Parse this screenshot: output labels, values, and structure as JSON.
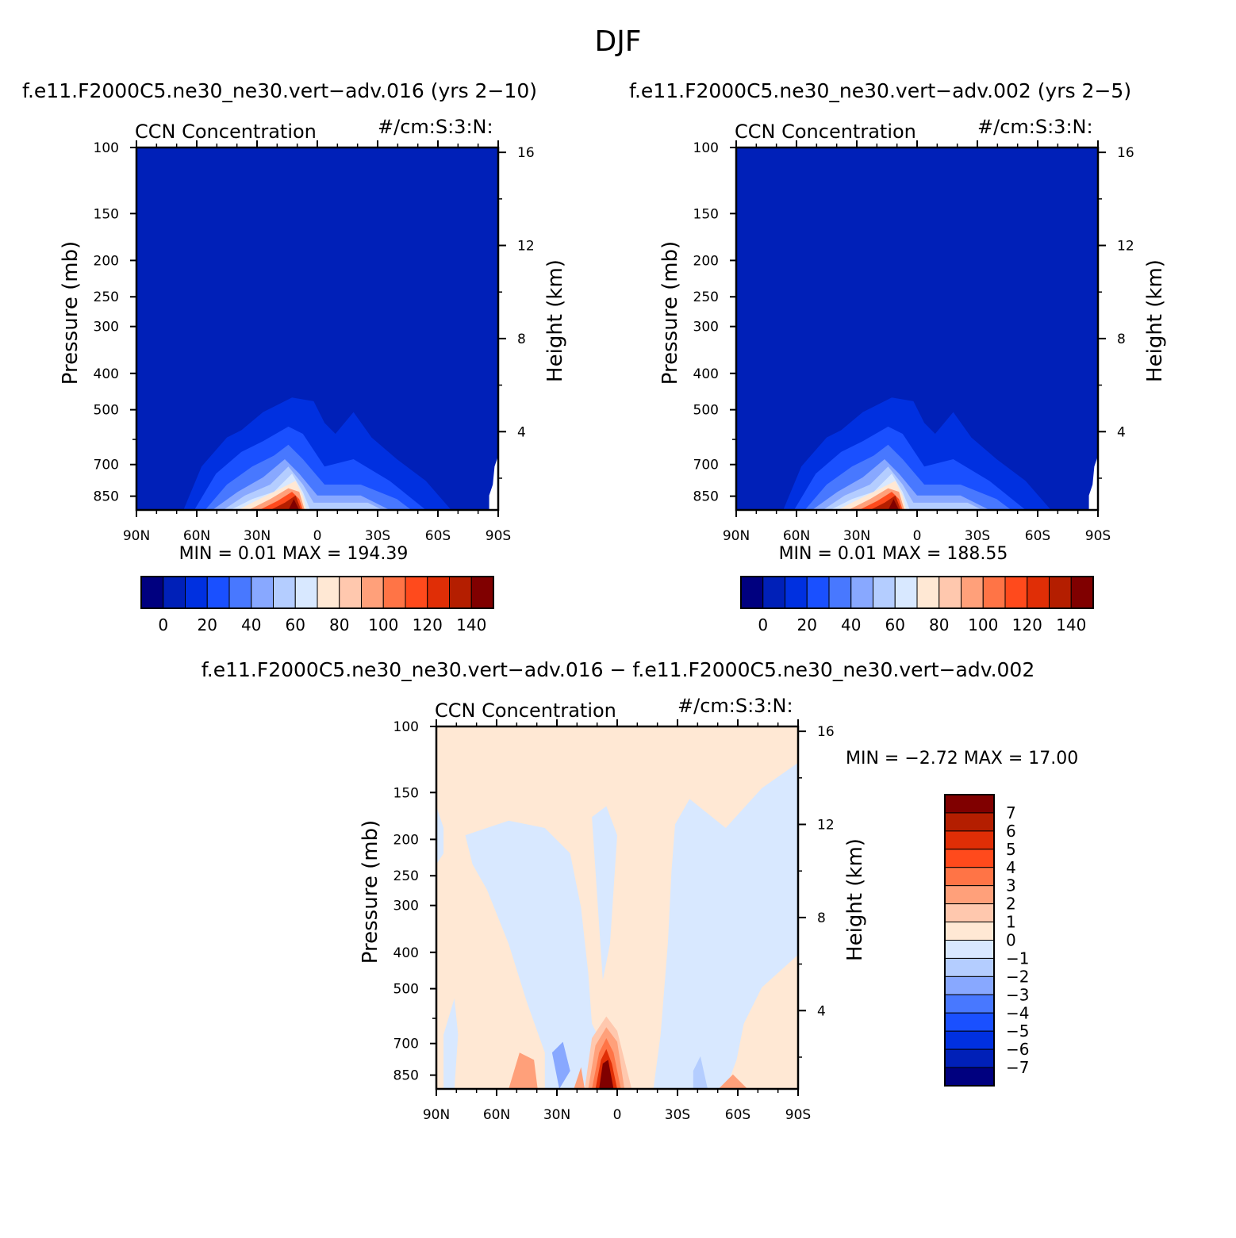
{
  "figure": {
    "title": "DJF",
    "diff_title": "f.e11.F2000C5.ne30_ne30.vert−adv.016 − f.e11.F2000C5.ne30_ne30.vert−adv.002"
  },
  "colors": {
    "abs_levels": [
      "#00007f",
      "#0020b8",
      "#0030e0",
      "#1a50ff",
      "#4878ff",
      "#88a8ff",
      "#b4cdff",
      "#d8e8ff",
      "#ffe8d4",
      "#ffc8ae",
      "#ffa07a",
      "#ff7446",
      "#ff4a1c",
      "#e02e06",
      "#b41e00",
      "#800000"
    ],
    "diff_levels": [
      "#00007f",
      "#0020b8",
      "#0030e0",
      "#1a50ff",
      "#4878ff",
      "#88a8ff",
      "#b4cdff",
      "#d8e8ff",
      "#ffe8d4",
      "#ffc8ae",
      "#ffa07a",
      "#ff7446",
      "#ff4a1c",
      "#e02e06",
      "#b41e00",
      "#800000"
    ]
  },
  "chart_data": [
    {
      "type": "heatmap",
      "title": "f.e11.F2000C5.ne30_ne30.vert−adv.016 (yrs 2−10)",
      "subtitle_left": "CCN Concentration",
      "subtitle_right": "#/cm:S:3:N:",
      "xlabel": "",
      "ylabel": "Pressure (mb)",
      "ylabel_right": "Height (km)",
      "x_ticks": [
        "90N",
        "60N",
        "30N",
        "0",
        "30S",
        "60S",
        "90S"
      ],
      "y_ticks": [
        "100",
        "150",
        "200",
        "250",
        "300",
        "400",
        "500",
        "700",
        "850"
      ],
      "y_ticks_right": [
        "16",
        "12",
        "8",
        "4"
      ],
      "stats": "MIN =    0.01   MAX = 194.39",
      "min": 0.01,
      "max": 194.39,
      "colorbar_labels": [
        "0",
        "20",
        "40",
        "60",
        "80",
        "100",
        "120",
        "140"
      ],
      "colorbar_orientation": "horizontal"
    },
    {
      "type": "heatmap",
      "title": "f.e11.F2000C5.ne30_ne30.vert−adv.002 (yrs 2−5)",
      "subtitle_left": "CCN Concentration",
      "subtitle_right": "#/cm:S:3:N:",
      "xlabel": "",
      "ylabel": "Pressure (mb)",
      "ylabel_right": "Height (km)",
      "x_ticks": [
        "90N",
        "60N",
        "30N",
        "0",
        "30S",
        "60S",
        "90S"
      ],
      "y_ticks": [
        "100",
        "150",
        "200",
        "250",
        "300",
        "400",
        "500",
        "700",
        "850"
      ],
      "y_ticks_right": [
        "16",
        "12",
        "8",
        "4"
      ],
      "stats": "MIN =    0.01   MAX = 188.55",
      "min": 0.01,
      "max": 188.55,
      "colorbar_labels": [
        "0",
        "20",
        "40",
        "60",
        "80",
        "100",
        "120",
        "140"
      ],
      "colorbar_orientation": "horizontal"
    },
    {
      "type": "heatmap",
      "title": "",
      "subtitle_left": "CCN Concentration",
      "subtitle_right": "#/cm:S:3:N:",
      "xlabel": "",
      "ylabel": "Pressure (mb)",
      "ylabel_right": "Height (km)",
      "x_ticks": [
        "90N",
        "60N",
        "30N",
        "0",
        "30S",
        "60S",
        "90S"
      ],
      "y_ticks": [
        "100",
        "150",
        "200",
        "250",
        "300",
        "400",
        "500",
        "700",
        "850"
      ],
      "y_ticks_right": [
        "16",
        "12",
        "8",
        "4"
      ],
      "stats": "MIN =   −2.72   MAX =   17.00",
      "min": -2.72,
      "max": 17.0,
      "colorbar_labels": [
        "7",
        "6",
        "5",
        "4",
        "3",
        "2",
        "1",
        "0",
        "−1",
        "−2",
        "−3",
        "−4",
        "−5",
        "−6",
        "−7"
      ],
      "colorbar_orientation": "vertical"
    }
  ]
}
